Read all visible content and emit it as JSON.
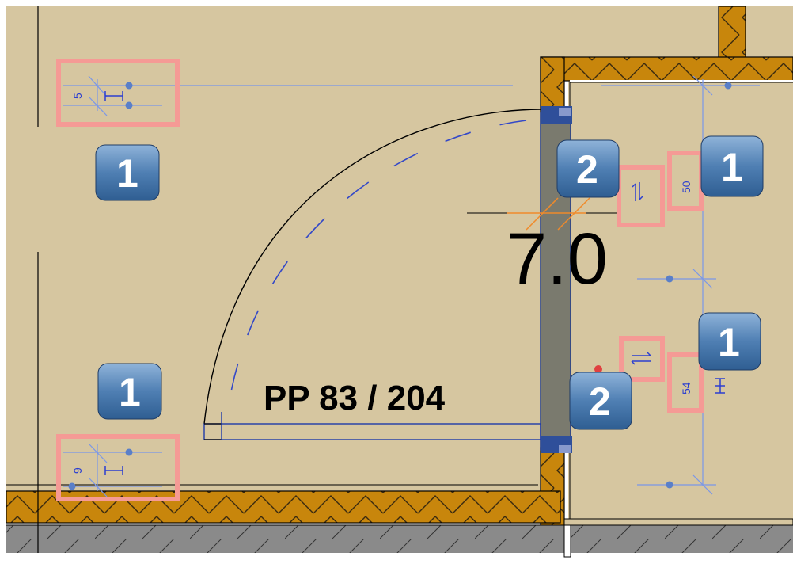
{
  "plan": {
    "door_tag": "PP 83 / 204",
    "level_value": "7.0"
  },
  "dimensions": {
    "top_left": "5",
    "bottom_left": "9",
    "right_upper": "50",
    "right_lower": "54"
  },
  "badges": {
    "upper_left": "1",
    "lower_left": "1",
    "door_upper": "2",
    "door_lower": "2",
    "right_upper": "1",
    "right_lower": "1"
  },
  "colors": {
    "floor": "#d6c6a0",
    "wall_insulation": "#c8860c",
    "door_frame": "#7a7a6e",
    "dimension_line": "#7a97e8",
    "highlight": "#f59a95",
    "badge": "#4a77a8",
    "base_floor": "#8a8a8a"
  }
}
